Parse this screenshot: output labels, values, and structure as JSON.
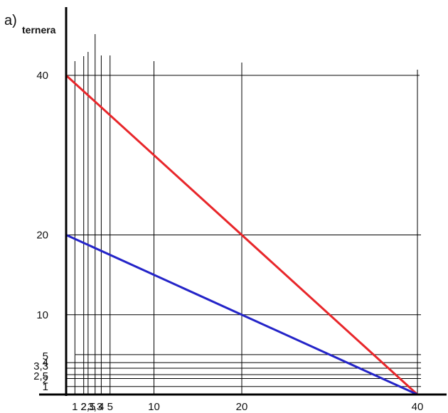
{
  "chart_data": {
    "type": "line",
    "corner_label": "a)",
    "ylabel": "ternera",
    "xlabel": "",
    "xlim": [
      0,
      40
    ],
    "ylim": [
      0,
      40
    ],
    "x_tick_labels": [
      "1",
      "2",
      "2,5",
      "3,3",
      "4",
      "5",
      "10",
      "20",
      "40"
    ],
    "y_tick_labels": [
      "40",
      "20",
      "10",
      "5",
      "4",
      "3,3",
      "2,5",
      "2",
      "1"
    ],
    "series": [
      {
        "color": "#e8262a",
        "points": [
          [
            0,
            40
          ],
          [
            40,
            0
          ]
        ]
      },
      {
        "color": "#2424c8",
        "points": [
          [
            0,
            20
          ],
          [
            40,
            0
          ]
        ]
      }
    ],
    "grid": true
  }
}
